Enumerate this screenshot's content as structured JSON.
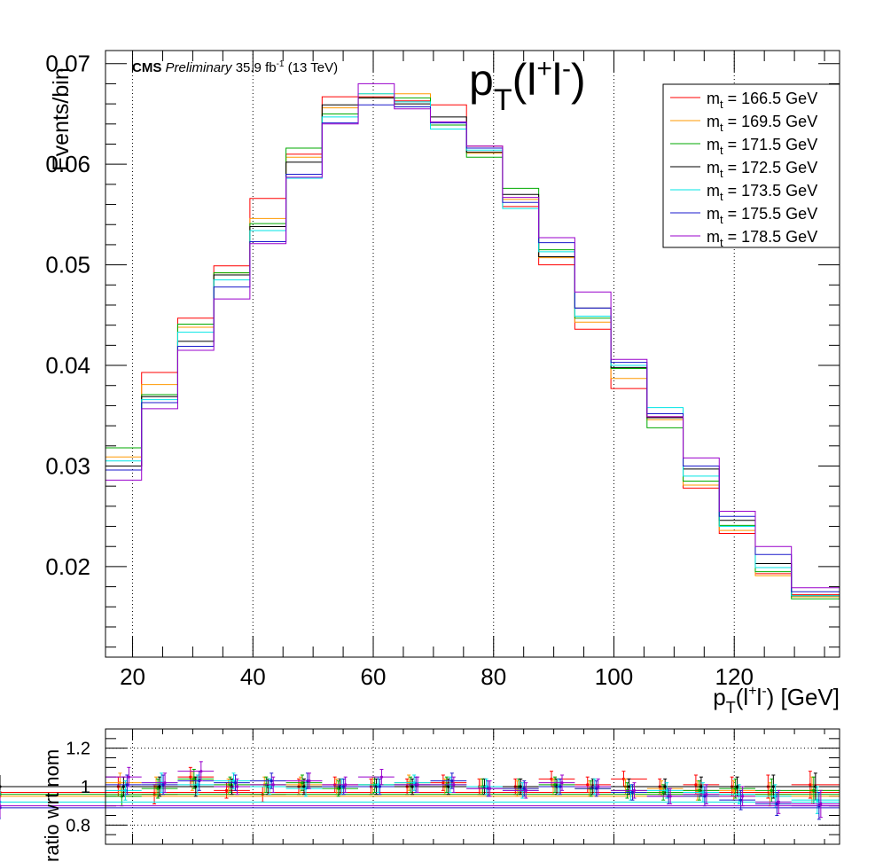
{
  "header": {
    "experiment": "CMS",
    "status": "Preliminary",
    "lumi_value": "35.9 fb",
    "lumi_exp": "-1",
    "energy": "(13 TeV)"
  },
  "chart_data": [
    {
      "type": "line",
      "title": {
        "base": "p",
        "sub": "T",
        "open": "(l",
        "sup1": "+",
        "mid": "l",
        "sup2": "-",
        "close": ")"
      },
      "xlabel": {
        "base": "p",
        "sub": "T",
        "open": "(l",
        "sup1": "+",
        "mid": "l",
        "sup2": "-",
        "close": ") [GeV]"
      },
      "ylabel": "Events/bin",
      "xlim": [
        15.5,
        137.5
      ],
      "ylim": [
        0.011,
        0.0713
      ],
      "x_ticks": [
        20,
        40,
        60,
        80,
        100,
        120
      ],
      "y_ticks": [
        0.02,
        0.03,
        0.04,
        0.05,
        0.06,
        0.07
      ],
      "y_tick_labels": [
        "0.02",
        "0.03",
        "0.04",
        "0.05",
        "0.06",
        "0.07"
      ],
      "grid": "vertical-dotted",
      "legend_position": "top-right",
      "bin_edges": [
        15.5,
        21.5,
        27.5,
        33.5,
        39.5,
        45.5,
        51.5,
        57.5,
        63.5,
        69.5,
        75.5,
        81.5,
        87.5,
        93.5,
        99.5,
        105.5,
        111.5,
        117.5,
        123.5,
        129.5,
        137.5
      ],
      "series": [
        {
          "name_base": "m",
          "name_sub": "t",
          "name_rest": " = 166.5 GeV",
          "color": "#ff0000",
          "values": [
            0.03,
            0.0393,
            0.0447,
            0.0499,
            0.0566,
            0.061,
            0.0667,
            0.0667,
            0.0663,
            0.0659,
            0.0618,
            0.0558,
            0.05,
            0.0436,
            0.0377,
            0.0349,
            0.0278,
            0.0233,
            0.0193,
            0.0172,
            0.0135
          ]
        },
        {
          "name_base": "m",
          "name_sub": "t",
          "name_rest": " = 169.5 GeV",
          "color": "#ff9900",
          "values": [
            0.0309,
            0.0381,
            0.0438,
            0.0492,
            0.0546,
            0.0607,
            0.0656,
            0.067,
            0.067,
            0.0642,
            0.0611,
            0.0565,
            0.0507,
            0.0443,
            0.0387,
            0.0346,
            0.0281,
            0.0236,
            0.0191,
            0.017,
            0.0137
          ]
        },
        {
          "name_base": "m",
          "name_sub": "t",
          "name_rest": " = 171.5 GeV",
          "color": "#00aa00",
          "values": [
            0.0318,
            0.0371,
            0.0441,
            0.0492,
            0.0541,
            0.0616,
            0.065,
            0.0666,
            0.0666,
            0.0639,
            0.0607,
            0.0576,
            0.0515,
            0.0447,
            0.0397,
            0.0338,
            0.0285,
            0.0241,
            0.0195,
            0.0168,
            0.014
          ]
        },
        {
          "name_base": "m",
          "name_sub": "t",
          "name_rest": " = 172.5 GeV",
          "color": "#000000",
          "values": [
            0.03,
            0.0369,
            0.0424,
            0.049,
            0.0538,
            0.0602,
            0.0659,
            0.0666,
            0.066,
            0.0647,
            0.0612,
            0.057,
            0.0508,
            0.0457,
            0.0398,
            0.0348,
            0.0297,
            0.0246,
            0.0203,
            0.0171,
            0.0146
          ]
        },
        {
          "name_base": "m",
          "name_sub": "t",
          "name_rest": " = 173.5 GeV",
          "color": "#00e5e5",
          "values": [
            0.0305,
            0.0366,
            0.0433,
            0.0485,
            0.0534,
            0.0586,
            0.0647,
            0.067,
            0.0662,
            0.0635,
            0.0614,
            0.0556,
            0.0513,
            0.0449,
            0.04,
            0.0358,
            0.029,
            0.024,
            0.0199,
            0.0171,
            0.0142
          ]
        },
        {
          "name_base": "m",
          "name_sub": "t",
          "name_rest": " = 175.5 GeV",
          "color": "#1a1acc",
          "values": [
            0.0296,
            0.0363,
            0.0419,
            0.0478,
            0.0523,
            0.059,
            0.0641,
            0.0659,
            0.0657,
            0.0641,
            0.0616,
            0.0562,
            0.0522,
            0.0457,
            0.0403,
            0.0352,
            0.03,
            0.025,
            0.0212,
            0.0175,
            0.0147
          ]
        },
        {
          "name_base": "m",
          "name_sub": "t",
          "name_rest": " = 178.5 GeV",
          "color": "#9900cc",
          "values": [
            0.0286,
            0.0357,
            0.0415,
            0.0466,
            0.0521,
            0.0587,
            0.064,
            0.068,
            0.0655,
            0.0642,
            0.0618,
            0.0567,
            0.0527,
            0.0473,
            0.0406,
            0.0349,
            0.0308,
            0.0255,
            0.022,
            0.0179,
            0.0147
          ]
        }
      ]
    },
    {
      "type": "scatter",
      "ylabel": "ratio wrt nom",
      "xlim": [
        15.5,
        137.5
      ],
      "ylim": [
        0.7,
        1.3
      ],
      "y_ticks": [
        0.8,
        1,
        1.2
      ],
      "y_tick_labels": [
        "0.8",
        "1",
        "1.2"
      ],
      "x_ticks": [
        20,
        40,
        60,
        80,
        100,
        120
      ],
      "grid": "horizontal-and-vertical-dotted",
      "error_bars": true,
      "series_colors": [
        "#ff0000",
        "#ff9900",
        "#00aa00",
        "#000000",
        "#00e5e5",
        "#1a1acc",
        "#9900cc"
      ],
      "series": [
        {
          "values": [
            1.0,
            0.96,
            1.05,
            0.98,
            0.96,
            1.0,
            1.01,
            1.0,
            1.0,
            1.02,
            1.0,
            1.0,
            1.04,
            1.01,
            1.04,
            1.0,
            1.01,
            1.0,
            1.0,
            1.01,
            0.97
          ],
          "errors": [
            0.05,
            0.05,
            0.05,
            0.04,
            0.04,
            0.04,
            0.04,
            0.04,
            0.04,
            0.04,
            0.04,
            0.04,
            0.04,
            0.04,
            0.04,
            0.04,
            0.05,
            0.05,
            0.06,
            0.07,
            0.06
          ]
        },
        {
          "values": [
            1.02,
            1.0,
            1.03,
            1.0,
            1.01,
            1.01,
            1.0,
            1.01,
            1.02,
            1.0,
            1.0,
            0.99,
            1.0,
            0.99,
            1.0,
            0.99,
            0.98,
            0.98,
            0.96,
            0.98,
            0.95
          ],
          "errors": [
            0.05,
            0.05,
            0.05,
            0.04,
            0.04,
            0.04,
            0.04,
            0.04,
            0.04,
            0.04,
            0.04,
            0.04,
            0.04,
            0.04,
            0.04,
            0.04,
            0.05,
            0.05,
            0.06,
            0.07,
            0.06
          ]
        },
        {
          "values": [
            0.95,
            0.99,
            1.04,
            1.01,
            1.01,
            1.02,
            0.99,
            1.01,
            1.01,
            1.01,
            1.0,
            1.0,
            1.01,
            0.99,
            0.98,
            0.97,
            0.98,
            0.99,
            0.98,
            0.98,
            0.96
          ],
          "errors": [
            0.05,
            0.05,
            0.05,
            0.04,
            0.04,
            0.04,
            0.04,
            0.04,
            0.04,
            0.04,
            0.04,
            0.04,
            0.04,
            0.04,
            0.04,
            0.04,
            0.05,
            0.05,
            0.06,
            0.07,
            0.06
          ]
        },
        {
          "values": [
            1.0,
            1.0,
            1.0,
            1.0,
            1.0,
            1.0,
            1.0,
            1.0,
            1.0,
            1.0,
            1.0,
            1.0,
            1.0,
            1.0,
            1.0,
            1.0,
            1.0,
            1.0,
            1.0,
            1.0,
            1.0
          ],
          "errors": [
            0.05,
            0.05,
            0.05,
            0.04,
            0.04,
            0.04,
            0.04,
            0.04,
            0.04,
            0.04,
            0.04,
            0.04,
            0.04,
            0.04,
            0.04,
            0.04,
            0.05,
            0.05,
            0.06,
            0.07,
            0.06
          ]
        },
        {
          "values": [
            0.98,
            1.02,
            1.01,
            1.03,
            1.0,
            0.99,
            1.0,
            1.01,
            1.02,
            1.01,
            1.0,
            0.98,
            1.0,
            1.0,
            0.97,
            0.98,
            0.97,
            0.96,
            0.95,
            0.93,
            0.92
          ],
          "errors": [
            0.05,
            0.05,
            0.05,
            0.04,
            0.04,
            0.04,
            0.04,
            0.04,
            0.04,
            0.04,
            0.04,
            0.04,
            0.04,
            0.04,
            0.04,
            0.04,
            0.05,
            0.05,
            0.06,
            0.07,
            0.06
          ]
        },
        {
          "values": [
            1.01,
            1.01,
            1.03,
            1.02,
            1.03,
            1.03,
            1.0,
            1.0,
            1.01,
            1.03,
            0.99,
            0.99,
            1.0,
            0.99,
            0.97,
            0.95,
            0.95,
            0.93,
            0.91,
            0.9,
            0.89
          ],
          "errors": [
            0.05,
            0.05,
            0.05,
            0.04,
            0.04,
            0.04,
            0.04,
            0.04,
            0.04,
            0.04,
            0.04,
            0.04,
            0.04,
            0.04,
            0.04,
            0.04,
            0.05,
            0.05,
            0.06,
            0.07,
            0.06
          ]
        },
        {
          "values": [
            1.05,
            1.02,
            1.08,
            1.0,
            1.01,
            1.03,
            1.01,
            1.05,
            1.01,
            1.01,
            0.99,
            0.98,
            1.02,
            1.0,
            0.98,
            0.95,
            0.96,
            0.95,
            0.92,
            0.91,
            0.9
          ],
          "errors": [
            0.05,
            0.05,
            0.05,
            0.04,
            0.04,
            0.04,
            0.04,
            0.04,
            0.04,
            0.04,
            0.04,
            0.04,
            0.04,
            0.04,
            0.04,
            0.04,
            0.05,
            0.05,
            0.06,
            0.07,
            0.06
          ]
        }
      ]
    }
  ]
}
